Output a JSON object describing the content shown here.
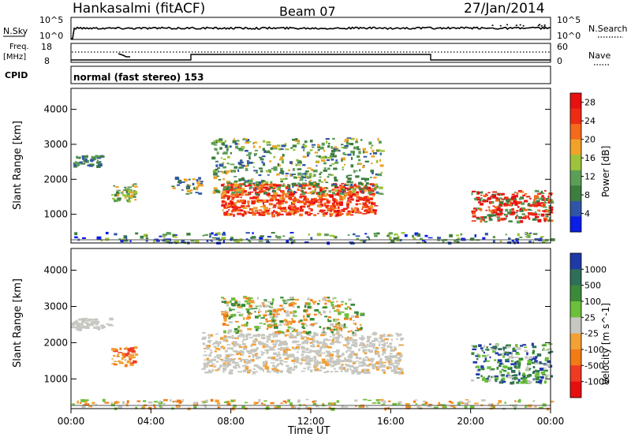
{
  "header": {
    "station": "Hankasalmi (fitACF)",
    "beam": "Beam 07",
    "date": "27/Jan/2014"
  },
  "top_panels": {
    "nsky_label": "N.Sky",
    "nsky_ticks": [
      "10^5",
      "10^0"
    ],
    "nsearch_label": "N.Search",
    "nsearch_ticks": [
      "10^5",
      "10^0"
    ],
    "freq_label": "Freq.",
    "freq_unit": "[MHz]",
    "freq_ticks": [
      "18",
      "8"
    ],
    "nave_label": "Nave",
    "nave_ticks": [
      "60",
      "0"
    ],
    "cpid_label": "CPID",
    "mode": "normal (fast stereo) 153"
  },
  "colors": {
    "power": [
      "#0a1ee8",
      "#2f55a6",
      "#3d7d3f",
      "#5d9e57",
      "#9ec33a",
      "#f1a329",
      "#f46a1a",
      "#ef2b14",
      "#e81010"
    ],
    "velocity": [
      "#e60f0f",
      "#f13a22",
      "#f27b14",
      "#f3a035",
      "#c7c7c1",
      "#6cbf3a",
      "#3b8a3a",
      "#2f6e58",
      "#1f3aa6"
    ]
  },
  "chart_data": [
    {
      "type": "heatmap",
      "title": "Power",
      "ylabel": "Slant Range [km]",
      "ylim": [
        180,
        4600
      ],
      "yticks": [
        "1000",
        "2000",
        "3000",
        "4000"
      ],
      "xlim": [
        "00:00",
        "24:00"
      ],
      "colorbar": {
        "label": "Power [dB]",
        "ticks": [
          "4",
          "8",
          "12",
          "16",
          "20",
          "24",
          "28"
        ],
        "range": [
          0,
          30
        ]
      },
      "regions": [
        {
          "t": [
            7.5,
            15.2
          ],
          "r": [
            1000,
            1900
          ],
          "level": "high (24-30 dB)"
        },
        {
          "t": [
            7.0,
            15.5
          ],
          "r": [
            1600,
            3200
          ],
          "level": "medium (8-20 dB)"
        },
        {
          "t": [
            20.0,
            24.0
          ],
          "r": [
            800,
            1700
          ],
          "level": "high (20-30 dB)"
        },
        {
          "t": [
            0.0,
            1.5
          ],
          "r": [
            2400,
            2700
          ],
          "level": "low (4-12 dB)"
        },
        {
          "t": [
            2.0,
            3.2
          ],
          "r": [
            1400,
            1900
          ],
          "level": "medium (8-20 dB)"
        },
        {
          "t": [
            5.0,
            6.5
          ],
          "r": [
            1600,
            2200
          ],
          "level": "low-medium"
        }
      ]
    },
    {
      "type": "heatmap",
      "title": "Velocity",
      "ylabel": "Slant Range [km]",
      "ylim": [
        180,
        4600
      ],
      "yticks": [
        "1000",
        "2000",
        "3000",
        "4000"
      ],
      "xlim": [
        "00:00",
        "24:00"
      ],
      "colorbar": {
        "label": "Velocity [m s^-1]",
        "ticks": [
          "1000",
          "500",
          "100",
          "25",
          "-25",
          "-100",
          "-500",
          "-1000"
        ],
        "range": [
          -1000,
          1000
        ]
      },
      "regions": [
        {
          "t": [
            6.5,
            16.5
          ],
          "r": [
            1200,
            2300
          ],
          "level": "ground scatter (-25 to 25)"
        },
        {
          "t": [
            7.5,
            14.5
          ],
          "r": [
            2300,
            3300
          ],
          "level": "negative (-100 to -500)"
        },
        {
          "t": [
            20.0,
            24.0
          ],
          "r": [
            900,
            2000
          ],
          "level": "positive (100 to 500)"
        },
        {
          "t": [
            0.0,
            2.0
          ],
          "r": [
            2400,
            2700
          ],
          "level": "ground scatter"
        },
        {
          "t": [
            2.0,
            3.2
          ],
          "r": [
            1400,
            1900
          ],
          "level": "negative (-100)"
        }
      ]
    }
  ],
  "xaxis": {
    "ticks": [
      "00:00",
      "04:00",
      "08:00",
      "12:00",
      "16:00",
      "20:00",
      "00:00"
    ],
    "label": "Time UT"
  }
}
